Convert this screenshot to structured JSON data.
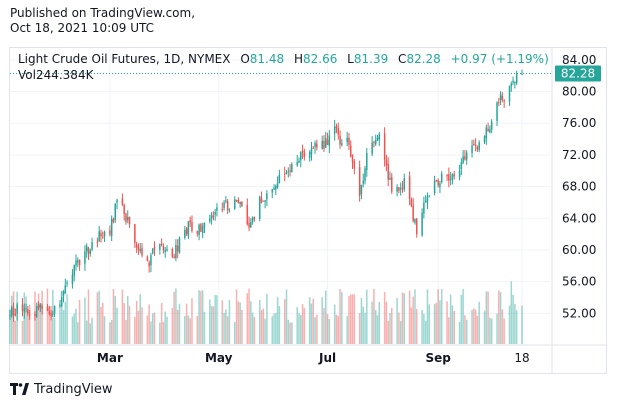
{
  "header": {
    "published": "Published on TradingView.com,",
    "timestamp": "Oct 18, 2021 10:09 UTC"
  },
  "legend": {
    "symbol": "Light Crude Oil Futures, 1D, NYMEX",
    "o_label": "O",
    "o_value": "81.48",
    "h_label": "H",
    "h_value": "82.66",
    "l_label": "L",
    "l_value": "81.39",
    "c_label": "C",
    "c_value": "82.28",
    "change": "+0.97 (+1.19%)",
    "vol_label": "Vol",
    "vol_value": "244.384K"
  },
  "price_tag": "82.28",
  "footer": {
    "brand": "TradingView"
  },
  "colors": {
    "up": "#26a69a",
    "down": "#ef5350",
    "grid": "#f0f3fa",
    "text": "#131722"
  },
  "chart_data": {
    "type": "candlestick",
    "title": "Light Crude Oil Futures, 1D, NYMEX",
    "x_tick_labels": [
      "Mar",
      "May",
      "Jul",
      "Sep",
      "18"
    ],
    "x_tick_dates": [
      "2021-03-01",
      "2021-05-01",
      "2021-07-01",
      "2021-09-01",
      "2021-10-18"
    ],
    "y_tick_labels": [
      "52.00",
      "56.00",
      "60.00",
      "64.00",
      "68.00",
      "72.00",
      "76.00",
      "80.00",
      "84.00"
    ],
    "ylim": [
      48.0,
      85.5
    ],
    "last_price": 82.28,
    "grid": true,
    "close_series": {
      "dates": [
        "2021-01-04",
        "2021-01-15",
        "2021-01-29",
        "2021-02-08",
        "2021-02-16",
        "2021-02-22",
        "2021-03-01",
        "2021-03-05",
        "2021-03-08",
        "2021-03-18",
        "2021-03-23",
        "2021-03-26",
        "2021-04-06",
        "2021-04-15",
        "2021-04-20",
        "2021-04-28",
        "2021-05-05",
        "2021-05-12",
        "2021-05-19",
        "2021-05-24",
        "2021-06-01",
        "2021-06-10",
        "2021-06-22",
        "2021-06-30",
        "2021-07-06",
        "2021-07-08",
        "2021-07-12",
        "2021-07-19",
        "2021-07-23",
        "2021-07-30",
        "2021-08-06",
        "2021-08-10",
        "2021-08-13",
        "2021-08-20",
        "2021-08-24",
        "2021-08-31",
        "2021-09-10",
        "2021-09-17",
        "2021-09-23",
        "2021-09-29",
        "2021-10-05",
        "2021-10-12",
        "2021-10-15",
        "2021-10-18"
      ],
      "values": [
        52.5,
        52.4,
        52.3,
        57.5,
        60.0,
        61.5,
        62.5,
        66.1,
        65.0,
        60.0,
        57.8,
        60.8,
        59.5,
        63.3,
        62.5,
        64.6,
        65.8,
        66.1,
        62.9,
        66.0,
        68.0,
        70.3,
        73.1,
        73.5,
        75.2,
        72.9,
        74.4,
        66.4,
        72.2,
        73.9,
        68.0,
        67.3,
        68.4,
        62.3,
        66.0,
        68.5,
        69.7,
        72.0,
        73.3,
        75.0,
        78.9,
        80.5,
        82.0,
        82.28
      ]
    },
    "volume": {
      "range_shown_k": [
        40,
        280
      ],
      "last_k": 244.384
    }
  }
}
